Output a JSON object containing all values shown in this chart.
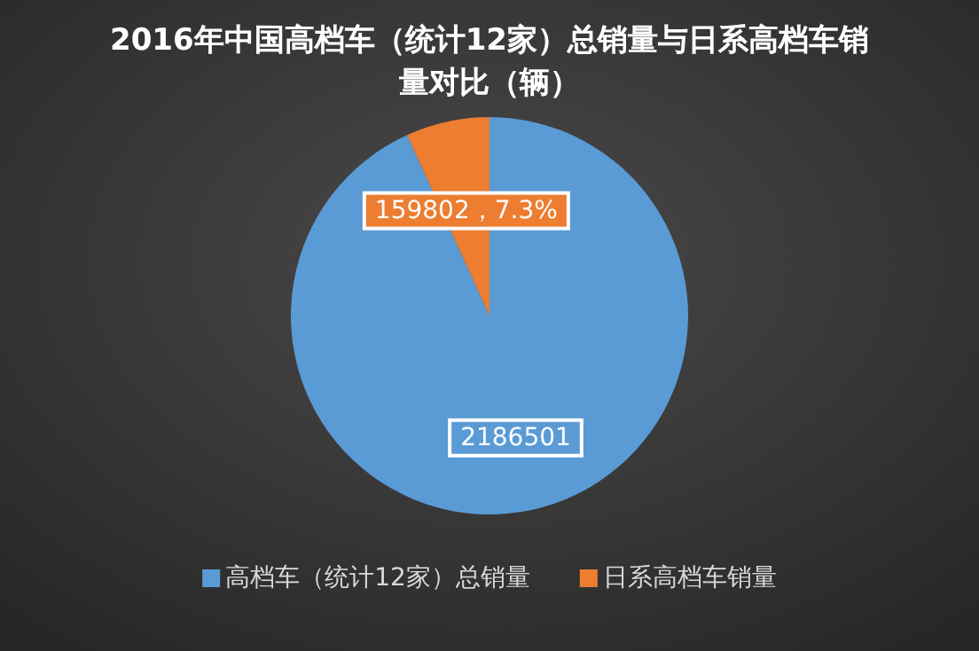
{
  "chart_data": {
    "type": "pie",
    "title": "2016年中国高档车（统计12家）总销量与日系高档车销量对比（辆）",
    "categories": [
      "高档车（统计12家）总销量",
      "日系高档车销量"
    ],
    "values": [
      2186501,
      159802
    ],
    "colors": [
      "#5b9bd5",
      "#ed7d31"
    ],
    "value_labels": [
      "2186501",
      "159802，7.3%"
    ],
    "legend": "bottom"
  }
}
